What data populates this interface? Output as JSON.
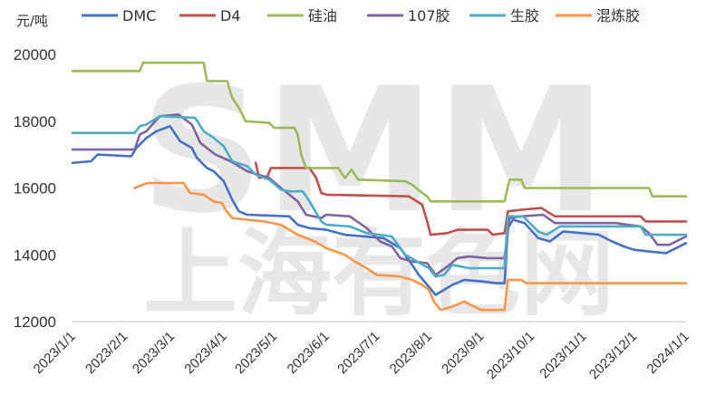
{
  "unit_label": "元/吨",
  "watermark_top": "SMM",
  "watermark_bottom": "上海有色网",
  "chart_data": {
    "type": "line",
    "ylim": [
      12000,
      20000
    ],
    "yticks": [
      "12000",
      "14000",
      "16000",
      "18000",
      "20000"
    ],
    "x_ticks": [
      "2023/1/1",
      "2023/2/1",
      "2023/3/1",
      "2023/4/1",
      "2023/5/1",
      "2023/6/1",
      "2023/7/1",
      "2023/8/1",
      "2023/9/1",
      "2023/10/1",
      "2023/11/1",
      "2023/12/1",
      "2024/1/1"
    ],
    "x_range": [
      "2023/1/1",
      "2024/1/1"
    ],
    "legend_position": "top",
    "grid": false,
    "series": [
      {
        "name": "DMC",
        "color": "#4472C4",
        "points": [
          [
            "2023-01-01",
            16750
          ],
          [
            "2023-01-12",
            16800
          ],
          [
            "2023-01-16",
            17000
          ],
          [
            "2023-02-05",
            16950
          ],
          [
            "2023-02-08",
            17200
          ],
          [
            "2023-02-14",
            17500
          ],
          [
            "2023-02-20",
            17700
          ],
          [
            "2023-02-28",
            17850
          ],
          [
            "2023-03-06",
            17400
          ],
          [
            "2023-03-13",
            17200
          ],
          [
            "2023-03-16",
            16900
          ],
          [
            "2023-03-22",
            16600
          ],
          [
            "2023-03-26",
            16500
          ],
          [
            "2023-04-01",
            16200
          ],
          [
            "2023-04-06",
            15650
          ],
          [
            "2023-04-10",
            15300
          ],
          [
            "2023-04-15",
            15200
          ],
          [
            "2023-05-10",
            15150
          ],
          [
            "2023-05-15",
            14900
          ],
          [
            "2023-05-22",
            14800
          ],
          [
            "2023-06-01",
            14750
          ],
          [
            "2023-06-12",
            14600
          ],
          [
            "2023-07-05",
            14500
          ],
          [
            "2023-07-15",
            14200
          ],
          [
            "2023-07-22",
            13700
          ],
          [
            "2023-07-26",
            13400
          ],
          [
            "2023-07-31",
            13100
          ],
          [
            "2023-08-05",
            12800
          ],
          [
            "2023-08-15",
            13100
          ],
          [
            "2023-08-22",
            13250
          ],
          [
            "2023-09-03",
            13200
          ],
          [
            "2023-09-10",
            13150
          ],
          [
            "2023-09-15",
            13150
          ],
          [
            "2023-09-17",
            14800
          ],
          [
            "2023-09-20",
            15050
          ],
          [
            "2023-09-27",
            14950
          ],
          [
            "2023-10-05",
            14500
          ],
          [
            "2023-10-12",
            14400
          ],
          [
            "2023-10-20",
            14700
          ],
          [
            "2023-11-10",
            14600
          ],
          [
            "2023-11-18",
            14400
          ],
          [
            "2023-11-25",
            14250
          ],
          [
            "2023-12-01",
            14150
          ],
          [
            "2023-12-10",
            14100
          ],
          [
            "2023-12-20",
            14050
          ],
          [
            "2023-12-26",
            14200
          ],
          [
            "2024-01-01",
            14350
          ]
        ]
      },
      {
        "name": "D4",
        "color": "#C0504D",
        "points": [
          [
            "2023-04-20",
            16750
          ],
          [
            "2023-04-22",
            16300
          ],
          [
            "2023-04-27",
            16350
          ],
          [
            "2023-04-29",
            16600
          ],
          [
            "2023-05-22",
            16600
          ],
          [
            "2023-05-26",
            16300
          ],
          [
            "2023-05-29",
            15850
          ],
          [
            "2023-06-01",
            15800
          ],
          [
            "2023-07-20",
            15750
          ],
          [
            "2023-07-28",
            15500
          ],
          [
            "2023-07-31",
            15000
          ],
          [
            "2023-08-02",
            14600
          ],
          [
            "2023-08-12",
            14650
          ],
          [
            "2023-08-18",
            14750
          ],
          [
            "2023-09-05",
            14750
          ],
          [
            "2023-09-08",
            14600
          ],
          [
            "2023-09-15",
            14650
          ],
          [
            "2023-09-17",
            15300
          ],
          [
            "2023-09-25",
            15350
          ],
          [
            "2023-10-07",
            15400
          ],
          [
            "2023-10-15",
            15150
          ],
          [
            "2023-12-05",
            15150
          ],
          [
            "2023-12-08",
            15000
          ],
          [
            "2024-01-01",
            15000
          ]
        ]
      },
      {
        "name": "硅油",
        "color": "#9BBB59",
        "points": [
          [
            "2023-01-01",
            19500
          ],
          [
            "2023-02-10",
            19500
          ],
          [
            "2023-02-12",
            19750
          ],
          [
            "2023-03-20",
            19750
          ],
          [
            "2023-03-22",
            19200
          ],
          [
            "2023-04-03",
            19200
          ],
          [
            "2023-04-06",
            18700
          ],
          [
            "2023-04-10",
            18400
          ],
          [
            "2023-04-14",
            18000
          ],
          [
            "2023-04-28",
            17950
          ],
          [
            "2023-05-01",
            17800
          ],
          [
            "2023-05-13",
            17800
          ],
          [
            "2023-05-15",
            17600
          ],
          [
            "2023-05-17",
            17000
          ],
          [
            "2023-05-20",
            16600
          ],
          [
            "2023-06-08",
            16600
          ],
          [
            "2023-06-12",
            16300
          ],
          [
            "2023-06-16",
            16550
          ],
          [
            "2023-06-20",
            16250
          ],
          [
            "2023-07-18",
            16200
          ],
          [
            "2023-07-22",
            16100
          ],
          [
            "2023-07-28",
            15850
          ],
          [
            "2023-07-31",
            15750
          ],
          [
            "2023-08-02",
            15600
          ],
          [
            "2023-09-15",
            15600
          ],
          [
            "2023-09-18",
            16250
          ],
          [
            "2023-09-25",
            16250
          ],
          [
            "2023-09-27",
            16000
          ],
          [
            "2023-12-10",
            16000
          ],
          [
            "2023-12-12",
            15750
          ],
          [
            "2024-01-01",
            15750
          ]
        ]
      },
      {
        "name": "107胶",
        "color": "#8064A2",
        "points": [
          [
            "2023-01-01",
            17150
          ],
          [
            "2023-02-07",
            17150
          ],
          [
            "2023-02-10",
            17600
          ],
          [
            "2023-02-14",
            17700
          ],
          [
            "2023-02-22",
            18150
          ],
          [
            "2023-03-05",
            18200
          ],
          [
            "2023-03-13",
            17900
          ],
          [
            "2023-03-18",
            17350
          ],
          [
            "2023-03-27",
            17000
          ],
          [
            "2023-04-05",
            16800
          ],
          [
            "2023-04-10",
            16650
          ],
          [
            "2023-04-15",
            16500
          ],
          [
            "2023-04-28",
            16300
          ],
          [
            "2023-05-05",
            16000
          ],
          [
            "2023-05-15",
            15600
          ],
          [
            "2023-05-20",
            15200
          ],
          [
            "2023-05-29",
            15100
          ],
          [
            "2023-06-01",
            15200
          ],
          [
            "2023-06-15",
            15150
          ],
          [
            "2023-06-25",
            14800
          ],
          [
            "2023-07-03",
            14400
          ],
          [
            "2023-07-10",
            14250
          ],
          [
            "2023-07-15",
            13900
          ],
          [
            "2023-07-22",
            13800
          ],
          [
            "2023-07-31",
            13750
          ],
          [
            "2023-08-05",
            13400
          ],
          [
            "2023-08-12",
            13650
          ],
          [
            "2023-08-18",
            13900
          ],
          [
            "2023-08-25",
            13950
          ],
          [
            "2023-09-05",
            13900
          ],
          [
            "2023-09-15",
            13900
          ],
          [
            "2023-09-18",
            15100
          ],
          [
            "2023-09-25",
            15150
          ],
          [
            "2023-10-08",
            15200
          ],
          [
            "2023-10-15",
            14950
          ],
          [
            "2023-11-20",
            14950
          ],
          [
            "2023-12-05",
            14850
          ],
          [
            "2023-12-10",
            14650
          ],
          [
            "2023-12-15",
            14300
          ],
          [
            "2023-12-22",
            14300
          ],
          [
            "2023-12-28",
            14450
          ],
          [
            "2024-01-01",
            14550
          ]
        ]
      },
      {
        "name": "生胶",
        "color": "#4BACC6",
        "points": [
          [
            "2023-01-01",
            17650
          ],
          [
            "2023-02-07",
            17650
          ],
          [
            "2023-02-10",
            17850
          ],
          [
            "2023-02-14",
            17900
          ],
          [
            "2023-02-22",
            18150
          ],
          [
            "2023-03-15",
            18100
          ],
          [
            "2023-03-20",
            17700
          ],
          [
            "2023-03-26",
            17500
          ],
          [
            "2023-04-01",
            17250
          ],
          [
            "2023-04-06",
            16800
          ],
          [
            "2023-04-15",
            16650
          ],
          [
            "2023-04-20",
            16400
          ],
          [
            "2023-04-28",
            16250
          ],
          [
            "2023-05-05",
            15950
          ],
          [
            "2023-05-10",
            15900
          ],
          [
            "2023-05-18",
            15900
          ],
          [
            "2023-05-22",
            15600
          ],
          [
            "2023-05-29",
            15000
          ],
          [
            "2023-06-01",
            14900
          ],
          [
            "2023-06-15",
            14850
          ],
          [
            "2023-06-25",
            14650
          ],
          [
            "2023-07-10",
            14550
          ],
          [
            "2023-07-18",
            14000
          ],
          [
            "2023-07-25",
            13800
          ],
          [
            "2023-08-01",
            13600
          ],
          [
            "2023-08-05",
            13350
          ],
          [
            "2023-08-10",
            13400
          ],
          [
            "2023-08-15",
            13700
          ],
          [
            "2023-08-25",
            13600
          ],
          [
            "2023-09-15",
            13600
          ],
          [
            "2023-09-17",
            15150
          ],
          [
            "2023-09-26",
            15150
          ],
          [
            "2023-10-05",
            14700
          ],
          [
            "2023-10-10",
            14600
          ],
          [
            "2023-10-18",
            14850
          ],
          [
            "2023-11-20",
            14850
          ],
          [
            "2023-12-05",
            14850
          ],
          [
            "2023-12-08",
            14600
          ],
          [
            "2024-01-01",
            14600
          ]
        ]
      },
      {
        "name": "混炼胶",
        "color": "#F79646",
        "points": [
          [
            "2023-02-07",
            16000
          ],
          [
            "2023-02-12",
            16100
          ],
          [
            "2023-02-15",
            16150
          ],
          [
            "2023-03-08",
            16150
          ],
          [
            "2023-03-12",
            15850
          ],
          [
            "2023-03-20",
            15800
          ],
          [
            "2023-03-26",
            15600
          ],
          [
            "2023-03-31",
            15550
          ],
          [
            "2023-04-02",
            15350
          ],
          [
            "2023-04-06",
            15100
          ],
          [
            "2023-04-15",
            15050
          ],
          [
            "2023-04-25",
            15000
          ],
          [
            "2023-05-05",
            14900
          ],
          [
            "2023-05-15",
            14600
          ],
          [
            "2023-05-25",
            14400
          ],
          [
            "2023-06-01",
            14200
          ],
          [
            "2023-06-12",
            14000
          ],
          [
            "2023-06-18",
            13800
          ],
          [
            "2023-06-25",
            13600
          ],
          [
            "2023-07-01",
            13400
          ],
          [
            "2023-07-15",
            13350
          ],
          [
            "2023-07-22",
            13250
          ],
          [
            "2023-07-28",
            13100
          ],
          [
            "2023-08-01",
            12950
          ],
          [
            "2023-08-04",
            12600
          ],
          [
            "2023-08-08",
            12350
          ],
          [
            "2023-08-15",
            12450
          ],
          [
            "2023-08-22",
            12600
          ],
          [
            "2023-09-01",
            12350
          ],
          [
            "2023-09-15",
            12350
          ],
          [
            "2023-09-17",
            13250
          ],
          [
            "2023-09-25",
            13250
          ],
          [
            "2023-09-28",
            13150
          ],
          [
            "2024-01-01",
            13150
          ]
        ]
      }
    ]
  }
}
